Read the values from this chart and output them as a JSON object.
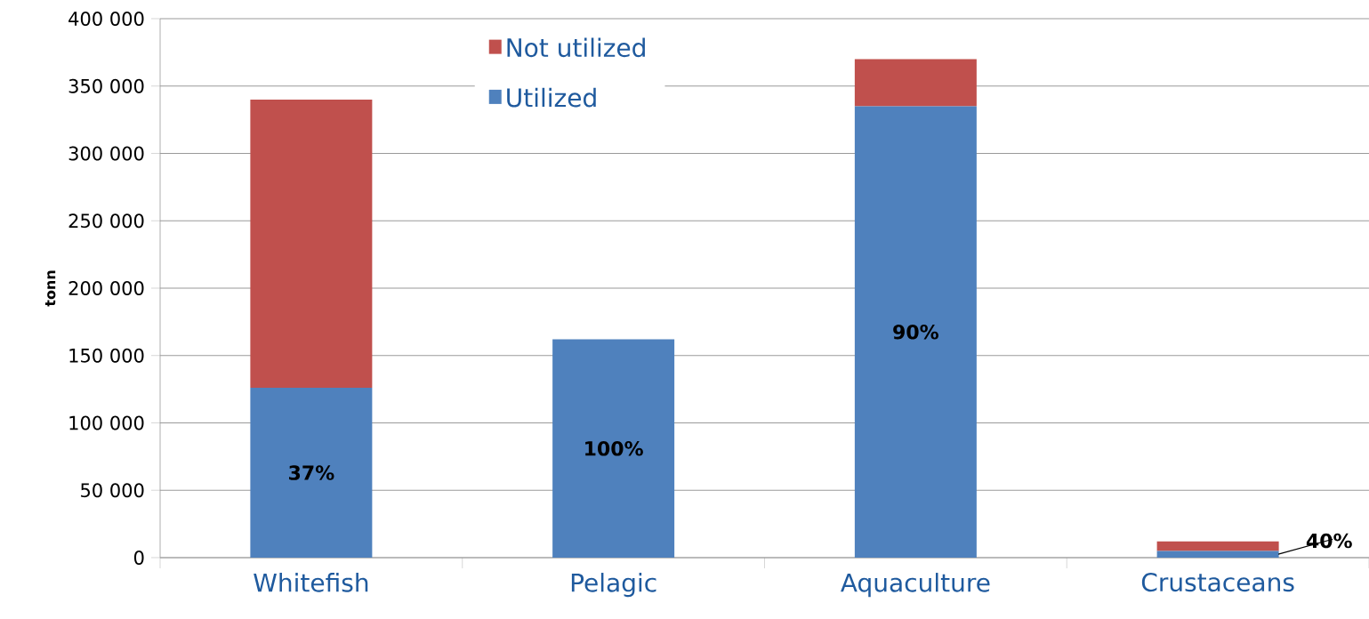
{
  "chart_data": {
    "type": "bar",
    "stacked": true,
    "ylabel": "tonn",
    "categories": [
      "Whitefish",
      "Pelagic",
      "Aquaculture",
      "Crustaceans"
    ],
    "series": [
      {
        "name": "Utilized",
        "color": "#4f81bd",
        "values": [
          126000,
          162000,
          335000,
          5000
        ]
      },
      {
        "name": "Not utilized",
        "color": "#c0504d",
        "values": [
          214000,
          0,
          35000,
          7000
        ]
      }
    ],
    "ylim": [
      0,
      400000
    ],
    "yticks": [
      {
        "value": 0,
        "label": "0"
      },
      {
        "value": 50000,
        "label": "50 000"
      },
      {
        "value": 100000,
        "label": "100 000"
      },
      {
        "value": 150000,
        "label": "150 000"
      },
      {
        "value": 200000,
        "label": "200 000"
      },
      {
        "value": 250000,
        "label": "250 000"
      },
      {
        "value": 300000,
        "label": "300 000"
      },
      {
        "value": 350000,
        "label": "350 000"
      },
      {
        "value": 400000,
        "label": "400 000"
      }
    ],
    "grid": "y",
    "legend": "top",
    "annotations": [
      "37%",
      "100%",
      "90%",
      "40%"
    ]
  }
}
